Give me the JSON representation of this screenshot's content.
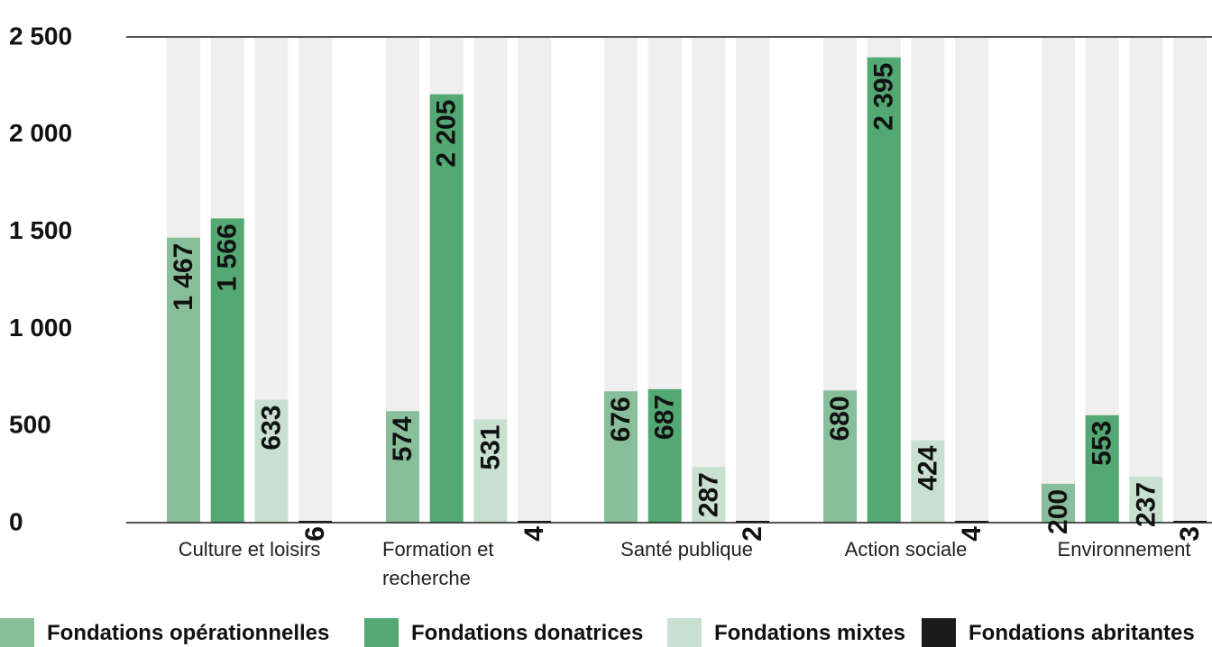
{
  "chart_data": {
    "type": "bar",
    "categories": [
      "Culture et loisirs",
      "Formation et recherche",
      "Santé publique",
      "Action sociale",
      "Environnement"
    ],
    "series": [
      {
        "name": "Fondations opérationnelles",
        "color": "#88bf9a",
        "values": [
          1467,
          574,
          676,
          680,
          200
        ],
        "labels": [
          "1 467",
          "574",
          "676",
          "680",
          "200"
        ]
      },
      {
        "name": "Fondations donatrices",
        "color": "#54a874",
        "values": [
          1566,
          2205,
          687,
          2395,
          553
        ],
        "labels": [
          "1 566",
          "2 205",
          "687",
          "2 395",
          "553"
        ]
      },
      {
        "name": "Fondations mixtes",
        "color": "#c8e0cf",
        "values": [
          633,
          531,
          287,
          424,
          237
        ],
        "labels": [
          "633",
          "531",
          "287",
          "424",
          "237"
        ]
      },
      {
        "name": "Fondations abritantes",
        "color": "#1b1b1b",
        "values": [
          6,
          4,
          2,
          4,
          3
        ],
        "labels": [
          "6",
          "4",
          "2",
          "4",
          "3"
        ]
      }
    ],
    "yticks": [
      0,
      500,
      1000,
      1500,
      2000,
      2500
    ],
    "ytick_labels": [
      "0",
      "500",
      "1 000",
      "1 500",
      "2 000",
      "2 500"
    ],
    "ylim": [
      0,
      2500
    ],
    "background_bar_color": "#efefef",
    "grid": false,
    "legend_position": "bottom"
  }
}
